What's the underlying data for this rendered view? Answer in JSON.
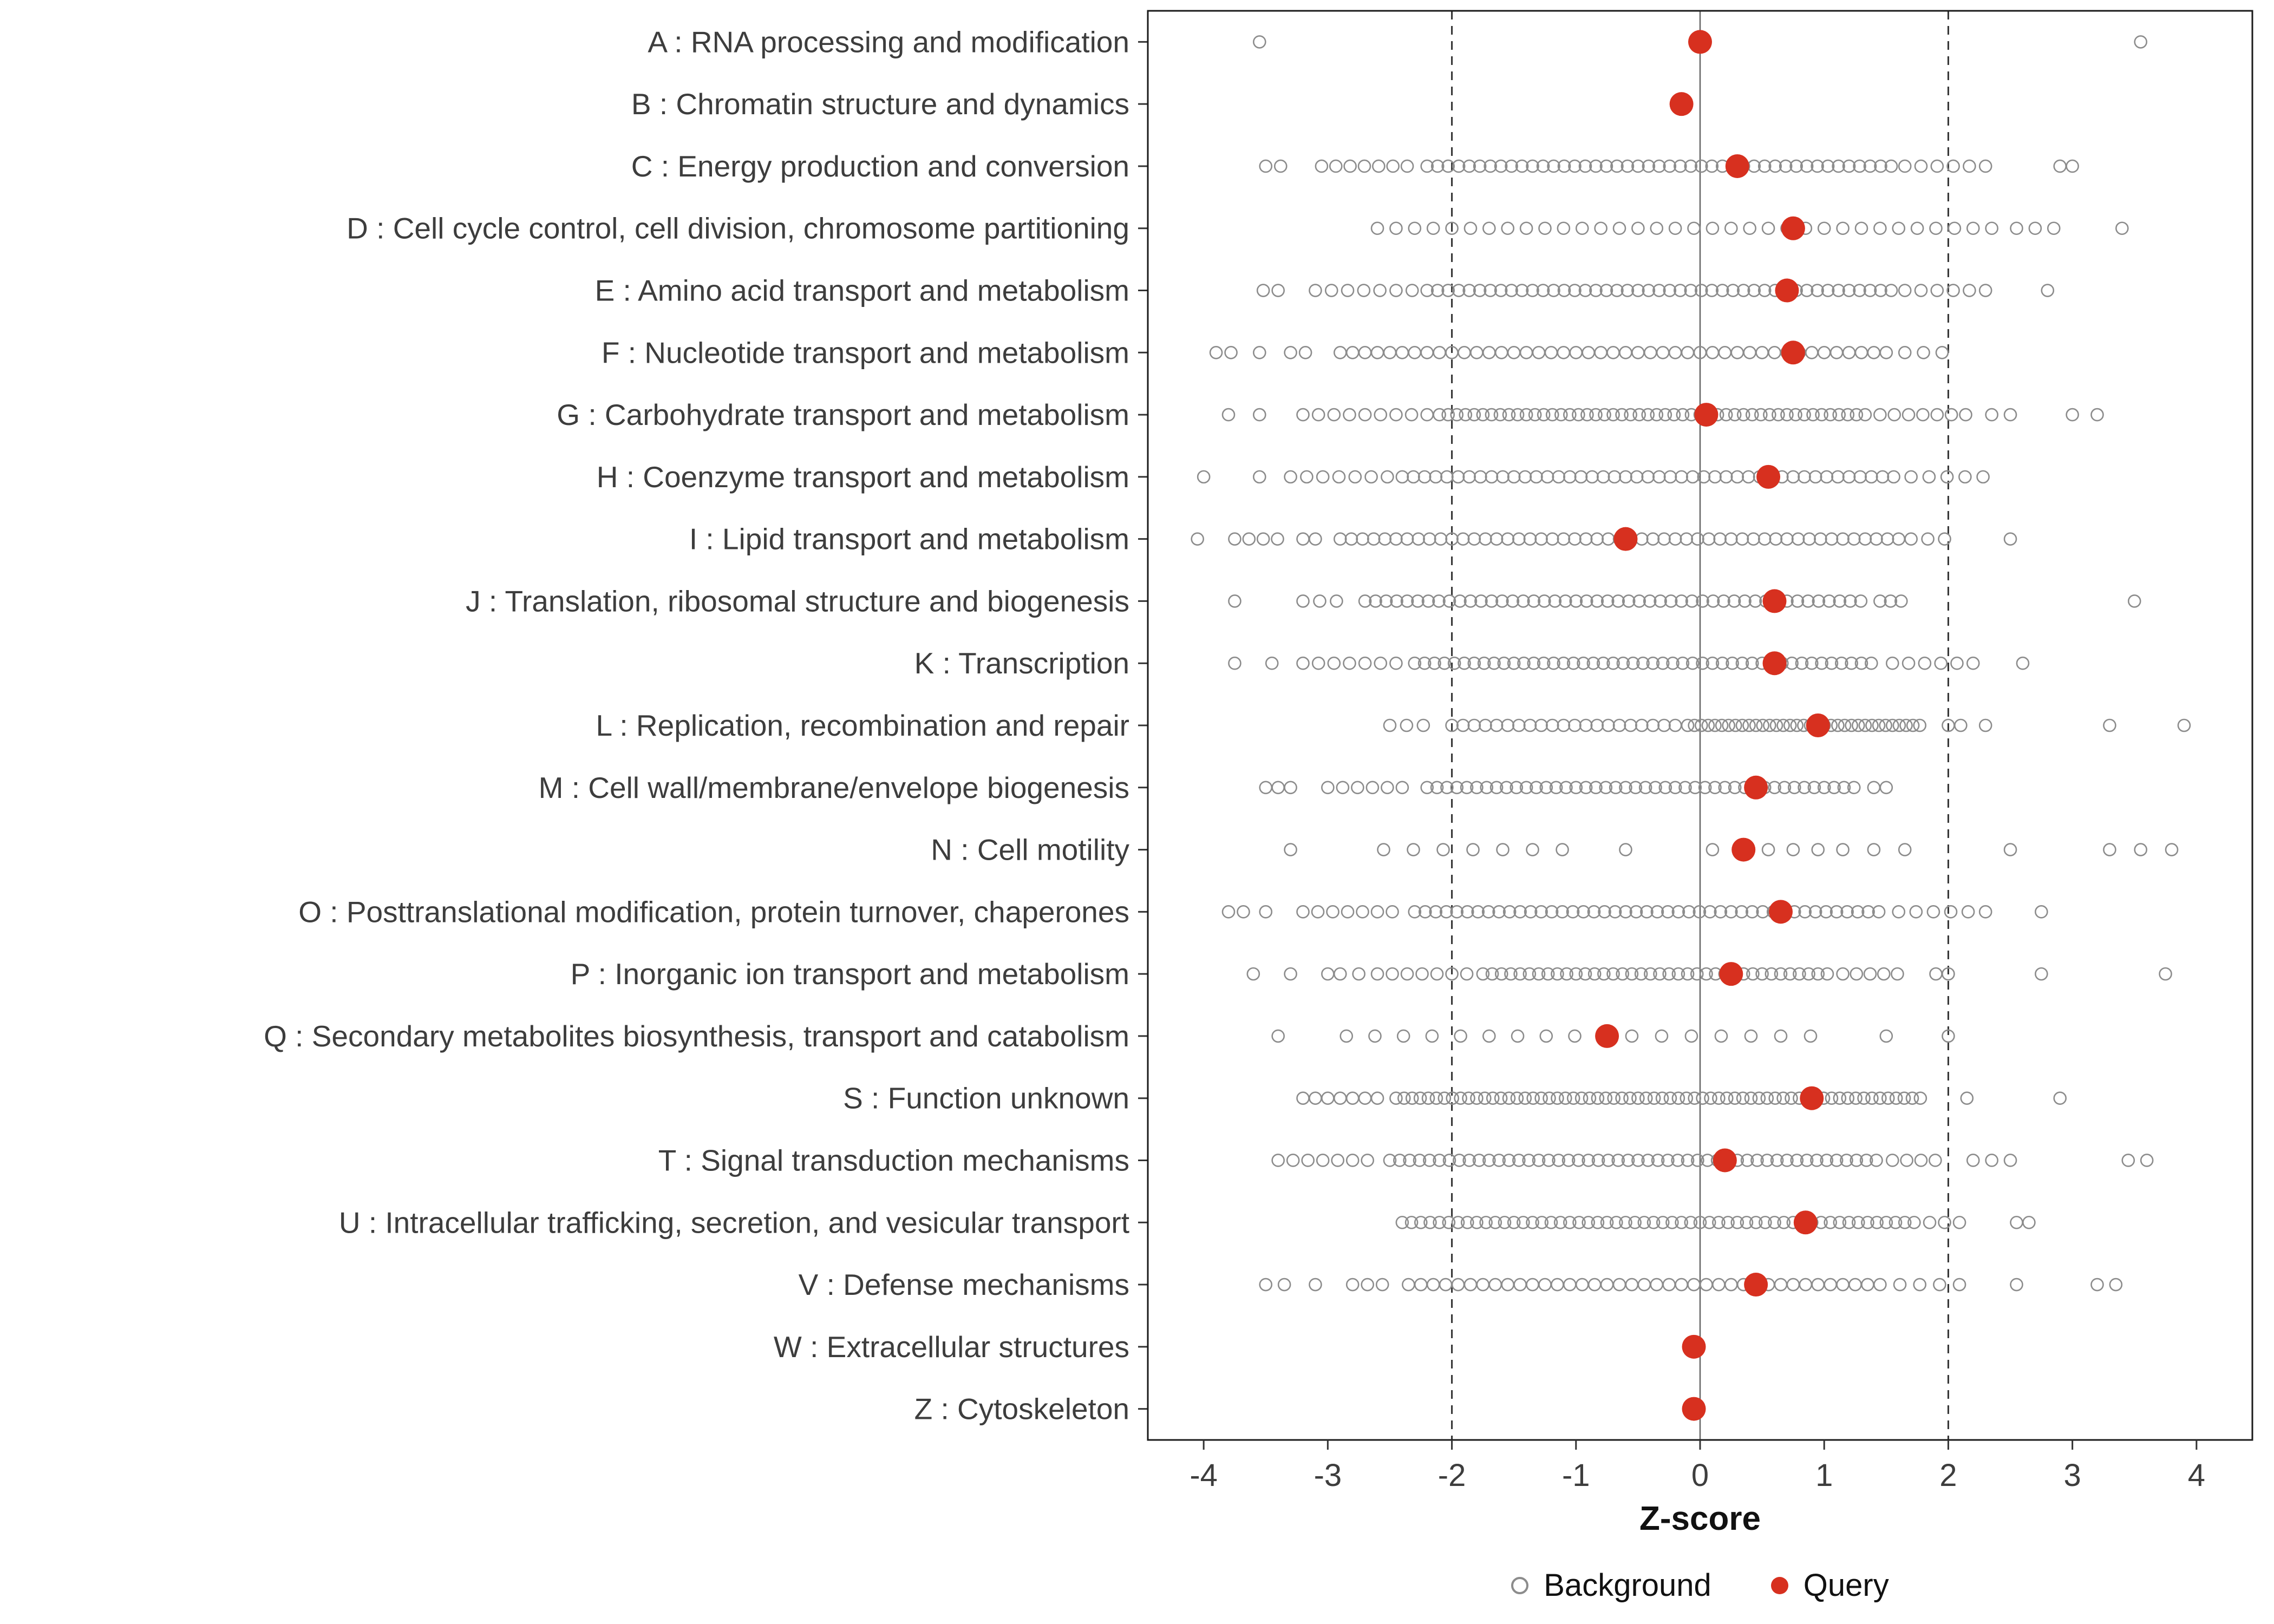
{
  "legend": {
    "background_label": "Background",
    "query_label": "Query"
  },
  "chart_data": {
    "type": "scatter",
    "subtype": "strip-dot-plot",
    "title": "",
    "xlabel": "Z-score",
    "ylabel": "",
    "xlim": [
      -4.45,
      4.45
    ],
    "xticks": [
      -4,
      -3,
      -2,
      -1,
      0,
      1,
      2,
      3,
      4
    ],
    "grid": false,
    "legend_position": "bottom",
    "reference_lines": {
      "solid": [
        0
      ],
      "dashed": [
        -2,
        2
      ]
    },
    "colors": {
      "query": "#D7301F",
      "background_stroke": "#8c8c8c",
      "axis_text": "#3d3d3d",
      "panel_border": "#1a1a1a",
      "zero_line": "#666666",
      "dashed_line": "#333333"
    },
    "categories": [
      {
        "code": "A",
        "label": "A : RNA processing and modification",
        "query": 0.0,
        "bg_runs": [],
        "bg_singles": [
          -3.55,
          3.55
        ]
      },
      {
        "code": "B",
        "label": "B : Chromatin structure and dynamics",
        "query": -0.15,
        "bg_runs": [],
        "bg_singles": []
      },
      {
        "code": "C",
        "label": "C : Energy production and conversion",
        "query": 0.3,
        "bg_runs": [
          [
            -3.05,
            -2.3,
            0.115
          ],
          [
            -2.2,
            1.55,
            0.085
          ],
          [
            1.65,
            2.3,
            0.13
          ]
        ],
        "bg_singles": [
          -3.5,
          -3.38,
          2.9,
          3.0
        ]
      },
      {
        "code": "D",
        "label": "D : Cell cycle control, cell division, chromosome partitioning",
        "query": 0.75,
        "bg_runs": [
          [
            -2.6,
            2.35,
            0.15
          ]
        ],
        "bg_singles": [
          2.55,
          2.7,
          2.85,
          3.4
        ]
      },
      {
        "code": "E",
        "label": "E : Amino acid transport and metabolism",
        "query": 0.7,
        "bg_runs": [
          [
            -3.1,
            -2.3,
            0.13
          ],
          [
            -2.2,
            1.55,
            0.085
          ],
          [
            1.65,
            2.3,
            0.13
          ]
        ],
        "bg_singles": [
          -3.52,
          -3.4,
          2.8
        ]
      },
      {
        "code": "F",
        "label": "F : Nucleotide transport and metabolism",
        "query": 0.75,
        "bg_runs": [
          [
            -2.9,
            1.55,
            0.1
          ],
          [
            1.65,
            1.95,
            0.15
          ]
        ],
        "bg_singles": [
          -3.9,
          -3.78,
          -3.55,
          -3.3,
          -3.18
        ]
      },
      {
        "code": "G",
        "label": "G : Carbohydrate transport and metabolism",
        "query": 0.05,
        "bg_runs": [
          [
            -3.2,
            -2.2,
            0.125
          ],
          [
            -2.1,
            1.35,
            0.07
          ],
          [
            1.45,
            2.15,
            0.115
          ]
        ],
        "bg_singles": [
          -3.8,
          -3.55,
          2.35,
          2.5,
          3.0,
          3.2
        ]
      },
      {
        "code": "H",
        "label": "H : Coenzyme transport and metabolism",
        "query": 0.55,
        "bg_runs": [
          [
            -3.3,
            -2.5,
            0.13
          ],
          [
            -2.4,
            1.6,
            0.09
          ],
          [
            1.7,
            2.3,
            0.145
          ]
        ],
        "bg_singles": [
          -4.0,
          -3.55
        ]
      },
      {
        "code": "I",
        "label": "I : Lipid transport and metabolism",
        "query": -0.6,
        "bg_runs": [
          [
            -3.75,
            -3.4,
            0.115
          ],
          [
            -2.9,
            1.6,
            0.09
          ],
          [
            1.7,
            2.1,
            0.135
          ]
        ],
        "bg_singles": [
          -4.05,
          -3.2,
          -3.1,
          2.5
        ]
      },
      {
        "code": "J",
        "label": "J : Translation, ribosomal structure and biogenesis",
        "query": 0.6,
        "bg_runs": [
          [
            -3.2,
            -2.8,
            0.135
          ],
          [
            -2.7,
            1.35,
            0.085
          ],
          [
            1.45,
            1.62,
            0.085
          ]
        ],
        "bg_singles": [
          -3.75,
          3.5
        ]
      },
      {
        "code": "K",
        "label": "K : Transcription",
        "query": 0.6,
        "bg_runs": [
          [
            -3.2,
            -2.4,
            0.125
          ],
          [
            -2.3,
            1.45,
            0.08
          ],
          [
            1.55,
            2.2,
            0.13
          ]
        ],
        "bg_singles": [
          -3.75,
          -3.45,
          2.6
        ]
      },
      {
        "code": "L",
        "label": "L : Replication, recombination and repair",
        "query": 0.95,
        "bg_runs": [
          [
            -2.5,
            -2.1,
            0.135
          ],
          [
            -2.0,
            -0.15,
            0.09
          ],
          [
            -0.1,
            1.8,
            0.055
          ]
        ],
        "bg_singles": [
          2.0,
          2.1,
          2.3,
          3.3,
          3.9
        ]
      },
      {
        "code": "M",
        "label": "M : Cell wall/membrane/envelope biogenesis",
        "query": 0.45,
        "bg_runs": [
          [
            -3.0,
            -2.3,
            0.12
          ],
          [
            -2.2,
            1.3,
            0.08
          ]
        ],
        "bg_singles": [
          -3.5,
          -3.4,
          -3.3,
          1.4,
          1.5
        ]
      },
      {
        "code": "N",
        "label": "N : Cell motility",
        "query": 0.35,
        "bg_runs": [
          [
            -2.55,
            -1.1,
            0.24
          ]
        ],
        "bg_singles": [
          -3.3,
          -0.6,
          0.1,
          0.55,
          0.75,
          0.95,
          1.15,
          1.4,
          1.65,
          2.5,
          3.3,
          3.55,
          3.8
        ]
      },
      {
        "code": "O",
        "label": "O : Posttranslational modification, protein turnover, chaperones",
        "query": 0.65,
        "bg_runs": [
          [
            -3.2,
            -2.4,
            0.12
          ],
          [
            -2.3,
            1.5,
            0.085
          ],
          [
            1.6,
            2.3,
            0.14
          ]
        ],
        "bg_singles": [
          -3.8,
          -3.68,
          -3.5,
          2.75
        ]
      },
      {
        "code": "P",
        "label": "P : Inorganic ion transport and metabolism",
        "query": 0.25,
        "bg_runs": [
          [
            -2.6,
            -1.85,
            0.12
          ],
          [
            -1.75,
            1.05,
            0.075
          ],
          [
            1.15,
            1.6,
            0.11
          ]
        ],
        "bg_singles": [
          -3.6,
          -3.3,
          -3.0,
          -2.9,
          -2.75,
          1.9,
          2.0,
          2.75,
          3.75
        ]
      },
      {
        "code": "Q",
        "label": "Q : Secondary metabolites biosynthesis, transport and catabolism",
        "query": -0.75,
        "bg_runs": [
          [
            -2.85,
            -1.0,
            0.23
          ],
          [
            -0.55,
            1.1,
            0.24
          ]
        ],
        "bg_singles": [
          -3.4,
          1.5,
          2.0
        ]
      },
      {
        "code": "S",
        "label": "S : Function unknown",
        "query": 0.9,
        "bg_runs": [
          [
            -3.2,
            -2.55,
            0.1
          ],
          [
            -2.45,
            1.8,
            0.065
          ]
        ],
        "bg_singles": [
          2.15,
          2.9
        ]
      },
      {
        "code": "T",
        "label": "T : Signal transduction mechanisms",
        "query": 0.2,
        "bg_runs": [
          [
            -3.4,
            -2.6,
            0.12
          ],
          [
            -2.5,
            1.45,
            0.08
          ],
          [
            1.55,
            1.9,
            0.115
          ]
        ],
        "bg_singles": [
          2.2,
          2.35,
          2.5,
          3.45,
          3.6
        ]
      },
      {
        "code": "U",
        "label": "U : Intracellular trafficking, secretion, and vesicular transport",
        "query": 0.85,
        "bg_runs": [
          [
            -2.4,
            1.75,
            0.075
          ],
          [
            1.85,
            2.1,
            0.12
          ]
        ],
        "bg_singles": [
          2.55,
          2.65
        ]
      },
      {
        "code": "V",
        "label": "V : Defense mechanisms",
        "query": 0.45,
        "bg_runs": [
          [
            -2.8,
            -2.45,
            0.12
          ],
          [
            -2.35,
            1.35,
            0.1
          ],
          [
            1.45,
            2.1,
            0.16
          ]
        ],
        "bg_singles": [
          -3.5,
          -3.35,
          -3.1,
          2.55,
          3.2,
          3.35
        ]
      },
      {
        "code": "W",
        "label": "W : Extracellular structures",
        "query": -0.05,
        "bg_runs": [],
        "bg_singles": []
      },
      {
        "code": "Z",
        "label": "Z : Cytoskeleton",
        "query": -0.05,
        "bg_runs": [],
        "bg_singles": []
      }
    ]
  }
}
